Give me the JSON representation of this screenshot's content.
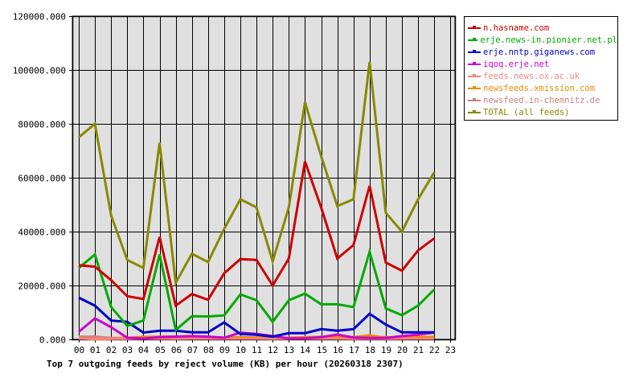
{
  "chart_data": {
    "type": "line",
    "title": "Top 7 outgoing feeds by reject volume (KB) per hour (20260318 2307)",
    "xlabel": "",
    "ylabel": "",
    "ylim": [
      0,
      120000
    ],
    "yticks": [
      "0.000",
      "20000.000",
      "40000.000",
      "60000.000",
      "80000.000",
      "100000.000",
      "120000.000"
    ],
    "x": [
      "00",
      "01",
      "02",
      "03",
      "04",
      "05",
      "06",
      "07",
      "08",
      "09",
      "10",
      "11",
      "12",
      "13",
      "14",
      "15",
      "16",
      "17",
      "18",
      "19",
      "20",
      "21",
      "22",
      "23"
    ],
    "grid": true,
    "legend_position": "right",
    "series": [
      {
        "name": "n.hasname.com",
        "color": "#cc0000",
        "values": [
          27500,
          27000,
          22000,
          16000,
          15000,
          38000,
          12500,
          16800,
          14700,
          24500,
          29800,
          29500,
          20000,
          30000,
          66000,
          49000,
          30000,
          35000,
          57000,
          28500,
          25500,
          33000,
          37500
        ]
      },
      {
        "name": "erje.news-in.pionier.net.pl",
        "color": "#00aa00",
        "values": [
          26500,
          31500,
          12000,
          5000,
          7000,
          31500,
          3500,
          8600,
          8500,
          8900,
          16700,
          14500,
          6500,
          14500,
          17000,
          13000,
          13000,
          12000,
          32500,
          11500,
          9000,
          12500,
          18500
        ]
      },
      {
        "name": "erje.nntp.giganews.com",
        "color": "#0000cc",
        "values": [
          15500,
          12500,
          7000,
          6500,
          2500,
          3200,
          3200,
          2600,
          2600,
          6300,
          2000,
          1700,
          1000,
          2300,
          2300,
          3800,
          3200,
          3800,
          9500,
          5500,
          2600,
          2600,
          2600
        ]
      },
      {
        "name": "iqoq.erje.net",
        "color": "#cc00cc",
        "values": [
          2800,
          7800,
          4500,
          600,
          300,
          800,
          1000,
          1200,
          1000,
          600,
          2500,
          2000,
          1200,
          400,
          400,
          800,
          1800,
          700,
          500,
          500,
          1200,
          1800,
          2500
        ]
      },
      {
        "name": "feeds.news.ox.ac.uk",
        "color": "#ff8080",
        "values": [
          300,
          200,
          200,
          200,
          300,
          300,
          200,
          300,
          300,
          300,
          300,
          300,
          200,
          300,
          300,
          300,
          300,
          200,
          300,
          200,
          300,
          300,
          300
        ]
      },
      {
        "name": "newsfeeds.xmission.com",
        "color": "#ee8800",
        "values": [
          500,
          0,
          200,
          600,
          900,
          1000,
          1000,
          800,
          900,
          700,
          800,
          700,
          600,
          600,
          800,
          900,
          1000,
          800,
          1500,
          600,
          800,
          900,
          900
        ]
      },
      {
        "name": "newsfeed.in-chemnitz.de",
        "color": "#cc8080",
        "values": [
          1000,
          1000,
          500,
          500,
          600,
          600,
          500,
          600,
          600,
          600,
          600,
          500,
          500,
          600,
          600,
          600,
          1200,
          700,
          1000,
          800,
          700,
          700,
          800
        ]
      },
      {
        "name": "TOTAL (all feeds)",
        "color": "#888800",
        "values": [
          75000,
          80000,
          46000,
          29500,
          26500,
          73000,
          21000,
          31800,
          28700,
          41000,
          52000,
          49000,
          29000,
          49000,
          88000,
          68000,
          49500,
          52000,
          103000,
          47000,
          40000,
          52000,
          62000
        ]
      }
    ]
  },
  "legend": {
    "items": [
      {
        "label": "n.hasname.com",
        "color": "#cc0000"
      },
      {
        "label": "erje.news-in.pionier.net.pl",
        "color": "#00aa00"
      },
      {
        "label": "erje.nntp.giganews.com",
        "color": "#0000cc"
      },
      {
        "label": "iqoq.erje.net",
        "color": "#cc00cc"
      },
      {
        "label": "feeds.news.ox.ac.uk",
        "color": "#ff8080"
      },
      {
        "label": "newsfeeds.xmission.com",
        "color": "#ee8800"
      },
      {
        "label": "newsfeed.in-chemnitz.de",
        "color": "#cc8080"
      },
      {
        "label": "TOTAL (all feeds)",
        "color": "#888800"
      }
    ]
  },
  "colors": {
    "plot_background": "#e0e0e0",
    "grid": "#000000"
  }
}
